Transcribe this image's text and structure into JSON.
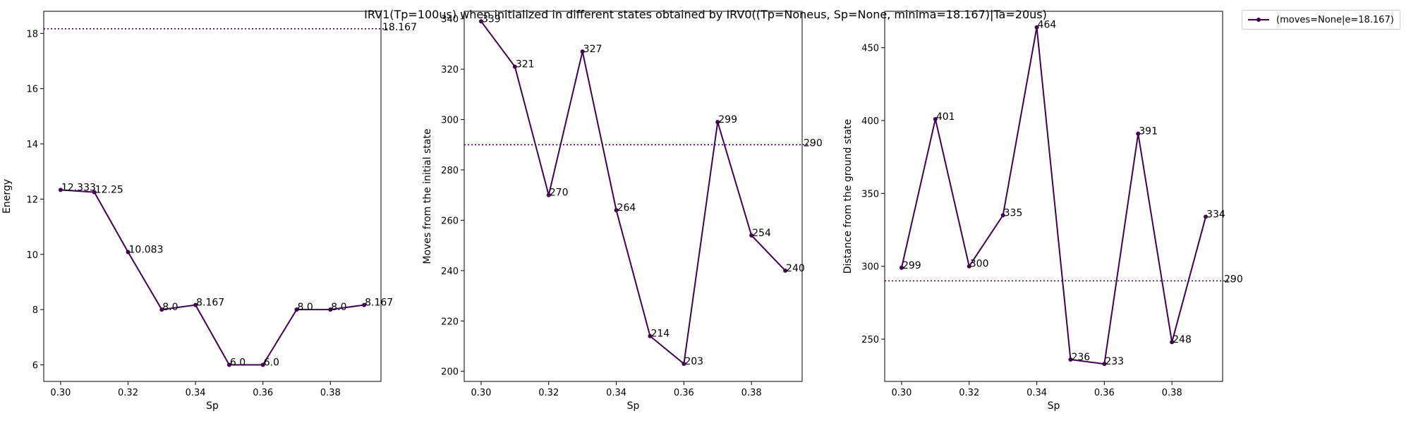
{
  "title": "IRV1(Tp=100us) when initialized in different states obtained by IRV0((Tp=Noneus, Sp=None, minima=18.167)|Ta=20us)",
  "legend": {
    "label": "(moves=None|e=18.167)"
  },
  "colors": {
    "series": "#440154"
  },
  "chart_data": [
    {
      "type": "line",
      "xlabel": "Sp",
      "ylabel": "Energy",
      "x": [
        0.3,
        0.31,
        0.32,
        0.33,
        0.34,
        0.35,
        0.36,
        0.37,
        0.38,
        0.39
      ],
      "values": [
        12.333,
        12.25,
        10.083,
        8.0,
        8.167,
        6.0,
        6.0,
        8.0,
        8.0,
        8.167
      ],
      "labels": [
        "12.333",
        "12.25",
        "10.083",
        "8.0",
        "8.167",
        "6.0",
        "6.0",
        "8.0",
        "8.0",
        "8.167"
      ],
      "reference": {
        "value": 18.167,
        "label": "18.167"
      },
      "xlim": [
        0.295,
        0.395
      ],
      "ylim": [
        5.4,
        18.8
      ],
      "xticks": [
        "0.30",
        "0.32",
        "0.34",
        "0.36",
        "0.38"
      ],
      "yticks": [
        "6",
        "8",
        "10",
        "12",
        "14",
        "16",
        "18"
      ],
      "grid": false
    },
    {
      "type": "line",
      "xlabel": "Sp",
      "ylabel": "Moves from the initial state",
      "x": [
        0.3,
        0.31,
        0.32,
        0.33,
        0.34,
        0.35,
        0.36,
        0.37,
        0.38,
        0.39
      ],
      "values": [
        339,
        321,
        270,
        327,
        264,
        214,
        203,
        299,
        254,
        240
      ],
      "labels": [
        "339",
        "321",
        "270",
        "327",
        "264",
        "214",
        "203",
        "299",
        "254",
        "240"
      ],
      "reference": {
        "value": 290,
        "label": "290"
      },
      "xlim": [
        0.295,
        0.395
      ],
      "ylim": [
        196,
        343
      ],
      "xticks": [
        "0.30",
        "0.32",
        "0.34",
        "0.36",
        "0.38"
      ],
      "yticks": [
        "200",
        "220",
        "240",
        "260",
        "280",
        "300",
        "320",
        "340"
      ],
      "grid": false
    },
    {
      "type": "line",
      "xlabel": "Sp",
      "ylabel": "Distance from the ground state",
      "x": [
        0.3,
        0.31,
        0.32,
        0.33,
        0.34,
        0.35,
        0.36,
        0.37,
        0.38,
        0.39
      ],
      "values": [
        299,
        401,
        300,
        335,
        464,
        236,
        233,
        391,
        248,
        334
      ],
      "labels": [
        "299",
        "401",
        "300",
        "335",
        "464",
        "236",
        "233",
        "391",
        "248",
        "334"
      ],
      "reference": {
        "value": 290,
        "label": "290"
      },
      "xlim": [
        0.295,
        0.395
      ],
      "ylim": [
        221,
        475
      ],
      "xticks": [
        "0.30",
        "0.32",
        "0.34",
        "0.36",
        "0.38"
      ],
      "yticks": [
        "250",
        "300",
        "350",
        "400",
        "450"
      ],
      "grid": false
    }
  ]
}
